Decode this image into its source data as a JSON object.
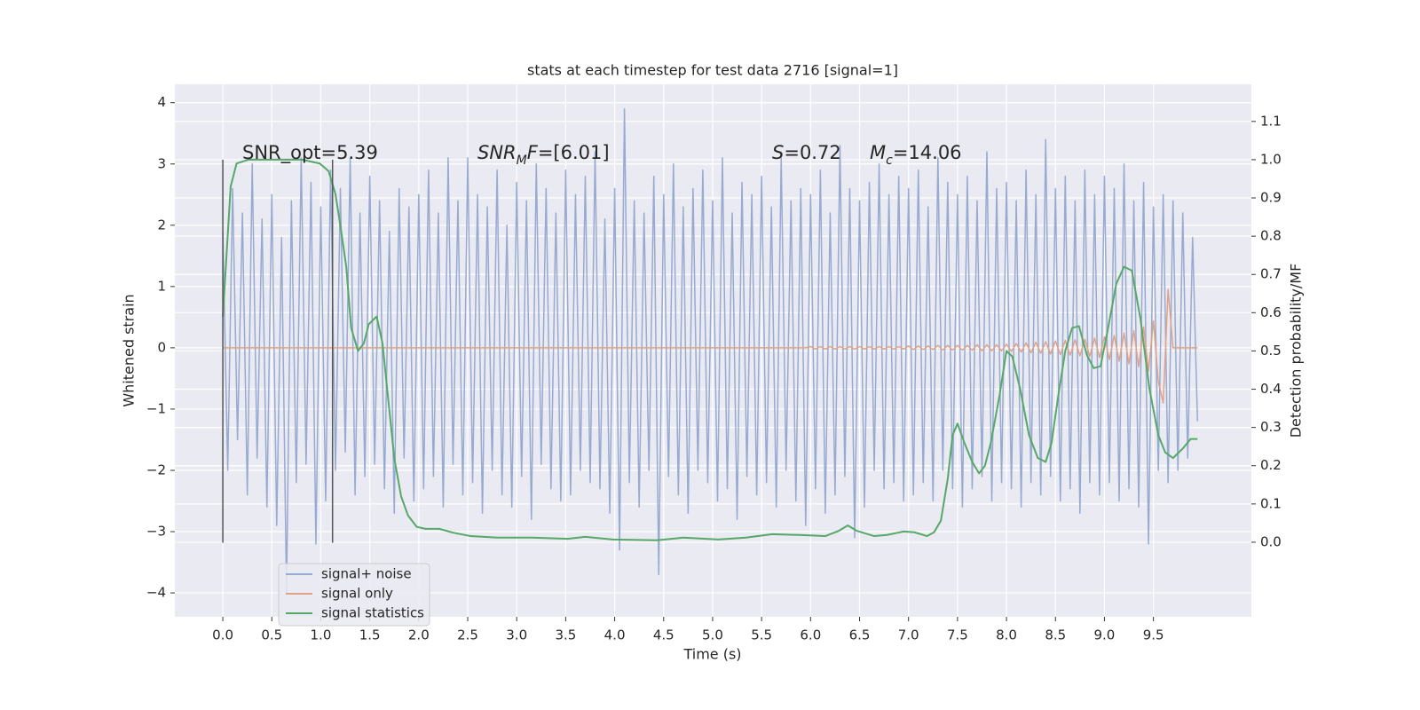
{
  "chart_data": {
    "type": "line",
    "title": "stats at each timestep for test data 2716 [signal=1]",
    "xlabel": "Time (s)",
    "ylabel": "Whitened strain",
    "y2label": "Detection probability/MF",
    "xlim": [
      -0.49,
      10.5
    ],
    "ylim": [
      -4.39,
      4.3
    ],
    "y2lim": [
      -0.195,
      1.197
    ],
    "xticks": [
      {
        "value": 0,
        "label": "0.0"
      },
      0.5,
      {
        "value": 1,
        "label": "1.0"
      },
      1.5,
      {
        "value": 2,
        "label": "2.0"
      },
      2.5,
      {
        "value": 3,
        "label": "3.0"
      },
      3.5,
      {
        "value": 4,
        "label": "4.0"
      },
      4.5,
      {
        "value": 5,
        "label": "5.0"
      },
      5.5,
      {
        "value": 6,
        "label": "6.0"
      },
      6.5,
      {
        "value": 7,
        "label": "7.0"
      },
      7.5,
      {
        "value": 8,
        "label": "8.0"
      },
      8.5,
      {
        "value": 9,
        "label": "9.0"
      },
      9.5
    ],
    "yticks": [
      {
        "value": -4,
        "label": "−4"
      },
      {
        "value": -3,
        "label": "−3"
      },
      {
        "value": -2,
        "label": "−2"
      },
      {
        "value": -1,
        "label": "−1"
      },
      0,
      1,
      2,
      3,
      4
    ],
    "y2ticks": [
      {
        "value": 0,
        "label": "0.0"
      },
      0.1,
      0.2,
      0.3,
      0.4,
      0.5,
      0.6,
      0.7,
      0.8,
      0.9,
      {
        "value": 1,
        "label": "1.0"
      },
      1.1
    ],
    "grid": true,
    "legend": "lower left",
    "vlines": [
      0,
      1.12
    ],
    "vline_ylim": [
      -3.18,
      3.07
    ],
    "vline_color": "#555555",
    "annotations": [
      {
        "segments": [
          {
            "text": "SNR_opt=5.39"
          }
        ]
      },
      {
        "segments": [
          {
            "text": "SNR",
            "italic": true
          },
          {
            "text": "M",
            "italic": true,
            "sub": true
          },
          {
            "text": "F",
            "italic": true
          },
          {
            "text": "=[6.01]"
          }
        ]
      },
      {
        "segments": [
          {
            "text": "S",
            "italic": true
          },
          {
            "text": "=0.72"
          }
        ]
      },
      {
        "segments": [
          {
            "text": "M",
            "italic": true
          },
          {
            "text": "c",
            "italic": true,
            "sub": true
          },
          {
            "text": "=14.06"
          }
        ]
      }
    ],
    "x": [
      0,
      0.05,
      0.1,
      0.15,
      0.2,
      0.25,
      0.3,
      0.35,
      0.4,
      0.45,
      0.5,
      0.55,
      0.6,
      0.65,
      0.7,
      0.75,
      0.8,
      0.85,
      0.9,
      0.95,
      1,
      1.05,
      1.1,
      1.15,
      1.2,
      1.25,
      1.3,
      1.35,
      1.4,
      1.45,
      1.5,
      1.55,
      1.6,
      1.65,
      1.7,
      1.75,
      1.8,
      1.85,
      1.9,
      1.95,
      2,
      2.05,
      2.1,
      2.15,
      2.2,
      2.25,
      2.3,
      2.35,
      2.4,
      2.45,
      2.5,
      2.55,
      2.6,
      2.65,
      2.7,
      2.75,
      2.8,
      2.85,
      2.9,
      2.95,
      3,
      3.05,
      3.1,
      3.15,
      3.2,
      3.25,
      3.3,
      3.35,
      3.4,
      3.45,
      3.5,
      3.55,
      3.6,
      3.65,
      3.7,
      3.75,
      3.8,
      3.85,
      3.9,
      3.95,
      4,
      4.05,
      4.1,
      4.15,
      4.2,
      4.25,
      4.3,
      4.35,
      4.4,
      4.45,
      4.5,
      4.55,
      4.6,
      4.65,
      4.7,
      4.75,
      4.8,
      4.85,
      4.9,
      4.95,
      5,
      5.05,
      5.1,
      5.15,
      5.2,
      5.25,
      5.3,
      5.35,
      5.4,
      5.45,
      5.5,
      5.55,
      5.6,
      5.65,
      5.7,
      5.75,
      5.8,
      5.85,
      5.9,
      5.95,
      6,
      6.05,
      6.1,
      6.15,
      6.2,
      6.25,
      6.3,
      6.35,
      6.4,
      6.45,
      6.5,
      6.55,
      6.6,
      6.65,
      6.7,
      6.75,
      6.8,
      6.85,
      6.9,
      6.95,
      7,
      7.05,
      7.1,
      7.15,
      7.2,
      7.25,
      7.3,
      7.35,
      7.4,
      7.45,
      7.5,
      7.55,
      7.6,
      7.65,
      7.7,
      7.75,
      7.8,
      7.85,
      7.9,
      7.95,
      8,
      8.05,
      8.1,
      8.15,
      8.2,
      8.25,
      8.3,
      8.35,
      8.4,
      8.45,
      8.5,
      8.55,
      8.6,
      8.65,
      8.7,
      8.75,
      8.8,
      8.85,
      8.9,
      8.95,
      9,
      9.05,
      9.1,
      9.15,
      9.2,
      9.25,
      9.3,
      9.35,
      9.4,
      9.45,
      9.5,
      9.55,
      9.6,
      9.65,
      9.7,
      9.75,
      9.8,
      9.85,
      9.9,
      9.95
    ],
    "series": [
      {
        "name": "signal+ noise",
        "color": "#97aad1",
        "values": [
          1.9,
          -2.0,
          2.6,
          -1.5,
          2.2,
          -2.4,
          3.0,
          -1.8,
          2.1,
          -2.6,
          2.5,
          -2.9,
          1.8,
          -4.0,
          2.4,
          -2.2,
          3.1,
          -1.9,
          2.7,
          -3.2,
          2.3,
          -2.5,
          2.9,
          -2.0,
          2.6,
          -1.7,
          3.1,
          -2.4,
          2.2,
          -2.1,
          2.8,
          -1.9,
          2.4,
          -2.3,
          1.9,
          -2.7,
          2.6,
          -1.8,
          2.3,
          -2.5,
          2.5,
          -2.3,
          2.9,
          -2.1,
          2.2,
          -2.6,
          3.1,
          -1.9,
          2.4,
          -2.4,
          3.1,
          -2.2,
          2.5,
          -2.7,
          2.3,
          -2.0,
          2.9,
          -2.4,
          2.0,
          -2.6,
          2.7,
          -2.1,
          2.4,
          -2.8,
          3.0,
          -1.9,
          2.6,
          -2.3,
          2.2,
          -2.5,
          2.9,
          -2.4,
          2.5,
          -2.0,
          2.8,
          -2.2,
          3.2,
          -2.3,
          2.1,
          -2.7,
          2.6,
          -3.3,
          3.9,
          -2.2,
          2.4,
          -2.6,
          2.2,
          -2.0,
          2.8,
          -3.7,
          2.5,
          -2.1,
          3.0,
          -2.4,
          2.3,
          -2.7,
          2.6,
          -2.0,
          2.9,
          -2.2,
          2.4,
          -2.5,
          3.1,
          -2.3,
          2.2,
          -2.8,
          2.7,
          -2.1,
          2.5,
          -2.4,
          2.8,
          -2.2,
          2.3,
          -2.6,
          3.1,
          -2.0,
          2.4,
          -2.5,
          2.6,
          -2.9,
          2.5,
          -2.3,
          2.9,
          -2.7,
          2.2,
          -2.4,
          3.3,
          -2.1,
          2.6,
          -3.1,
          2.4,
          -2.6,
          2.7,
          -2.0,
          3.0,
          -2.3,
          2.5,
          -2.2,
          2.8,
          -2.5,
          2.6,
          -2.4,
          2.9,
          -2.2,
          2.3,
          -2.5,
          3.1,
          -2.0,
          2.7,
          -2.3,
          2.5,
          -2.6,
          2.8,
          -2.3,
          2.4,
          -2.1,
          3.2,
          -2.5,
          2.6,
          -2.2,
          2.7,
          -2.3,
          2.4,
          -2.6,
          2.9,
          -2.2,
          2.5,
          -2.4,
          3.4,
          -2.1,
          2.6,
          -2.5,
          2.8,
          -2.3,
          2.4,
          -2.7,
          2.9,
          -2.2,
          2.5,
          -2.4,
          2.8,
          -2.2,
          2.6,
          -2.5,
          3.0,
          -2.3,
          2.4,
          -2.6,
          2.7,
          -3.2,
          2.3,
          -2.0,
          2.5,
          -2.2,
          2.4,
          -2.0,
          2.2,
          -1.8,
          1.8,
          -1.2
        ]
      },
      {
        "name": "signal only",
        "color": "#e0a387",
        "values": [
          0,
          0,
          0,
          0,
          0,
          0,
          0,
          0,
          0,
          0,
          0,
          0,
          0,
          0,
          0,
          0,
          0,
          0,
          0,
          0,
          0,
          0,
          0,
          0,
          0,
          0,
          0,
          0,
          0,
          0,
          0,
          0,
          0,
          0,
          0,
          0,
          0,
          0,
          0,
          0,
          0,
          0,
          0,
          0,
          0,
          0,
          0,
          0,
          0,
          0,
          0,
          0,
          0,
          0,
          0,
          0,
          0,
          0,
          0,
          0,
          0,
          0,
          0,
          0,
          0,
          0,
          0,
          0,
          0,
          0,
          0,
          0,
          0,
          0,
          0,
          0,
          0,
          0,
          0,
          0,
          0,
          0,
          0,
          0,
          0,
          0,
          0,
          0,
          0,
          0,
          0,
          0,
          0,
          0,
          0,
          0,
          0,
          0,
          0,
          0,
          0,
          0,
          0,
          0,
          0,
          0,
          0,
          0,
          0,
          0,
          0,
          0,
          0,
          0,
          0,
          0,
          0,
          0,
          0,
          0,
          0.02,
          -0.02,
          0.02,
          -0.02,
          0.02,
          -0.02,
          0.02,
          -0.02,
          0.02,
          -0.02,
          0.02,
          -0.02,
          0.02,
          -0.02,
          0.02,
          -0.02,
          0.02,
          -0.02,
          0.02,
          -0.02,
          0.03,
          -0.03,
          0.03,
          -0.03,
          0.03,
          -0.03,
          0.04,
          -0.04,
          0.04,
          -0.04,
          0.04,
          -0.04,
          0.04,
          -0.04,
          0.05,
          -0.05,
          0.05,
          -0.05,
          0.05,
          -0.05,
          0.06,
          -0.06,
          0.07,
          -0.07,
          0.08,
          -0.08,
          0.09,
          -0.09,
          0.1,
          -0.1,
          0.11,
          -0.11,
          0.12,
          -0.12,
          0.13,
          -0.13,
          0.14,
          -0.14,
          0.16,
          -0.16,
          0.18,
          -0.19,
          0.2,
          -0.22,
          0.24,
          -0.26,
          0.28,
          -0.31,
          0.34,
          -0.38,
          0.44,
          -0.55,
          -0.9,
          0.95,
          0,
          0,
          0,
          0,
          0,
          0
        ]
      },
      {
        "name": "signal statistics",
        "color": "#55a868",
        "axis": "y2",
        "x": [
          0,
          0.08,
          0.14,
          0.26,
          0.44,
          0.81,
          0.99,
          1.08,
          1.15,
          1.21,
          1.26,
          1.31,
          1.38,
          1.44,
          1.49,
          1.57,
          1.63,
          1.69,
          1.75,
          1.82,
          1.89,
          1.98,
          2.07,
          2.21,
          2.35,
          2.53,
          2.8,
          3.16,
          3.52,
          3.7,
          3.98,
          4.43,
          4.7,
          5.06,
          5.34,
          5.61,
          5.88,
          6.15,
          6.29,
          6.38,
          6.47,
          6.65,
          6.78,
          6.95,
          7.06,
          7.19,
          7.26,
          7.33,
          7.4,
          7.45,
          7.5,
          7.57,
          7.65,
          7.72,
          7.78,
          7.84,
          7.93,
          8.0,
          8.06,
          8.14,
          8.23,
          8.32,
          8.4,
          8.46,
          8.53,
          8.6,
          8.67,
          8.74,
          8.82,
          8.89,
          8.96,
          9.03,
          9.12,
          9.2,
          9.28,
          9.37,
          9.46,
          9.55,
          9.62,
          9.7,
          9.8,
          9.88,
          9.95
        ],
        "values": [
          0.59,
          0.93,
          0.99,
          1.0,
          1.0,
          1.0,
          0.99,
          0.97,
          0.91,
          0.81,
          0.72,
          0.56,
          0.5,
          0.52,
          0.57,
          0.59,
          0.52,
          0.37,
          0.22,
          0.12,
          0.07,
          0.04,
          0.035,
          0.035,
          0.025,
          0.016,
          0.012,
          0.012,
          0.009,
          0.014,
          0.007,
          0.005,
          0.012,
          0.007,
          0.012,
          0.021,
          0.019,
          0.016,
          0.03,
          0.044,
          0.03,
          0.016,
          0.019,
          0.028,
          0.026,
          0.016,
          0.026,
          0.056,
          0.165,
          0.28,
          0.31,
          0.26,
          0.21,
          0.18,
          0.2,
          0.26,
          0.385,
          0.5,
          0.485,
          0.4,
          0.28,
          0.22,
          0.21,
          0.26,
          0.385,
          0.5,
          0.56,
          0.565,
          0.49,
          0.455,
          0.46,
          0.55,
          0.675,
          0.72,
          0.71,
          0.58,
          0.4,
          0.28,
          0.235,
          0.22,
          0.245,
          0.27,
          0.27
        ]
      }
    ]
  }
}
